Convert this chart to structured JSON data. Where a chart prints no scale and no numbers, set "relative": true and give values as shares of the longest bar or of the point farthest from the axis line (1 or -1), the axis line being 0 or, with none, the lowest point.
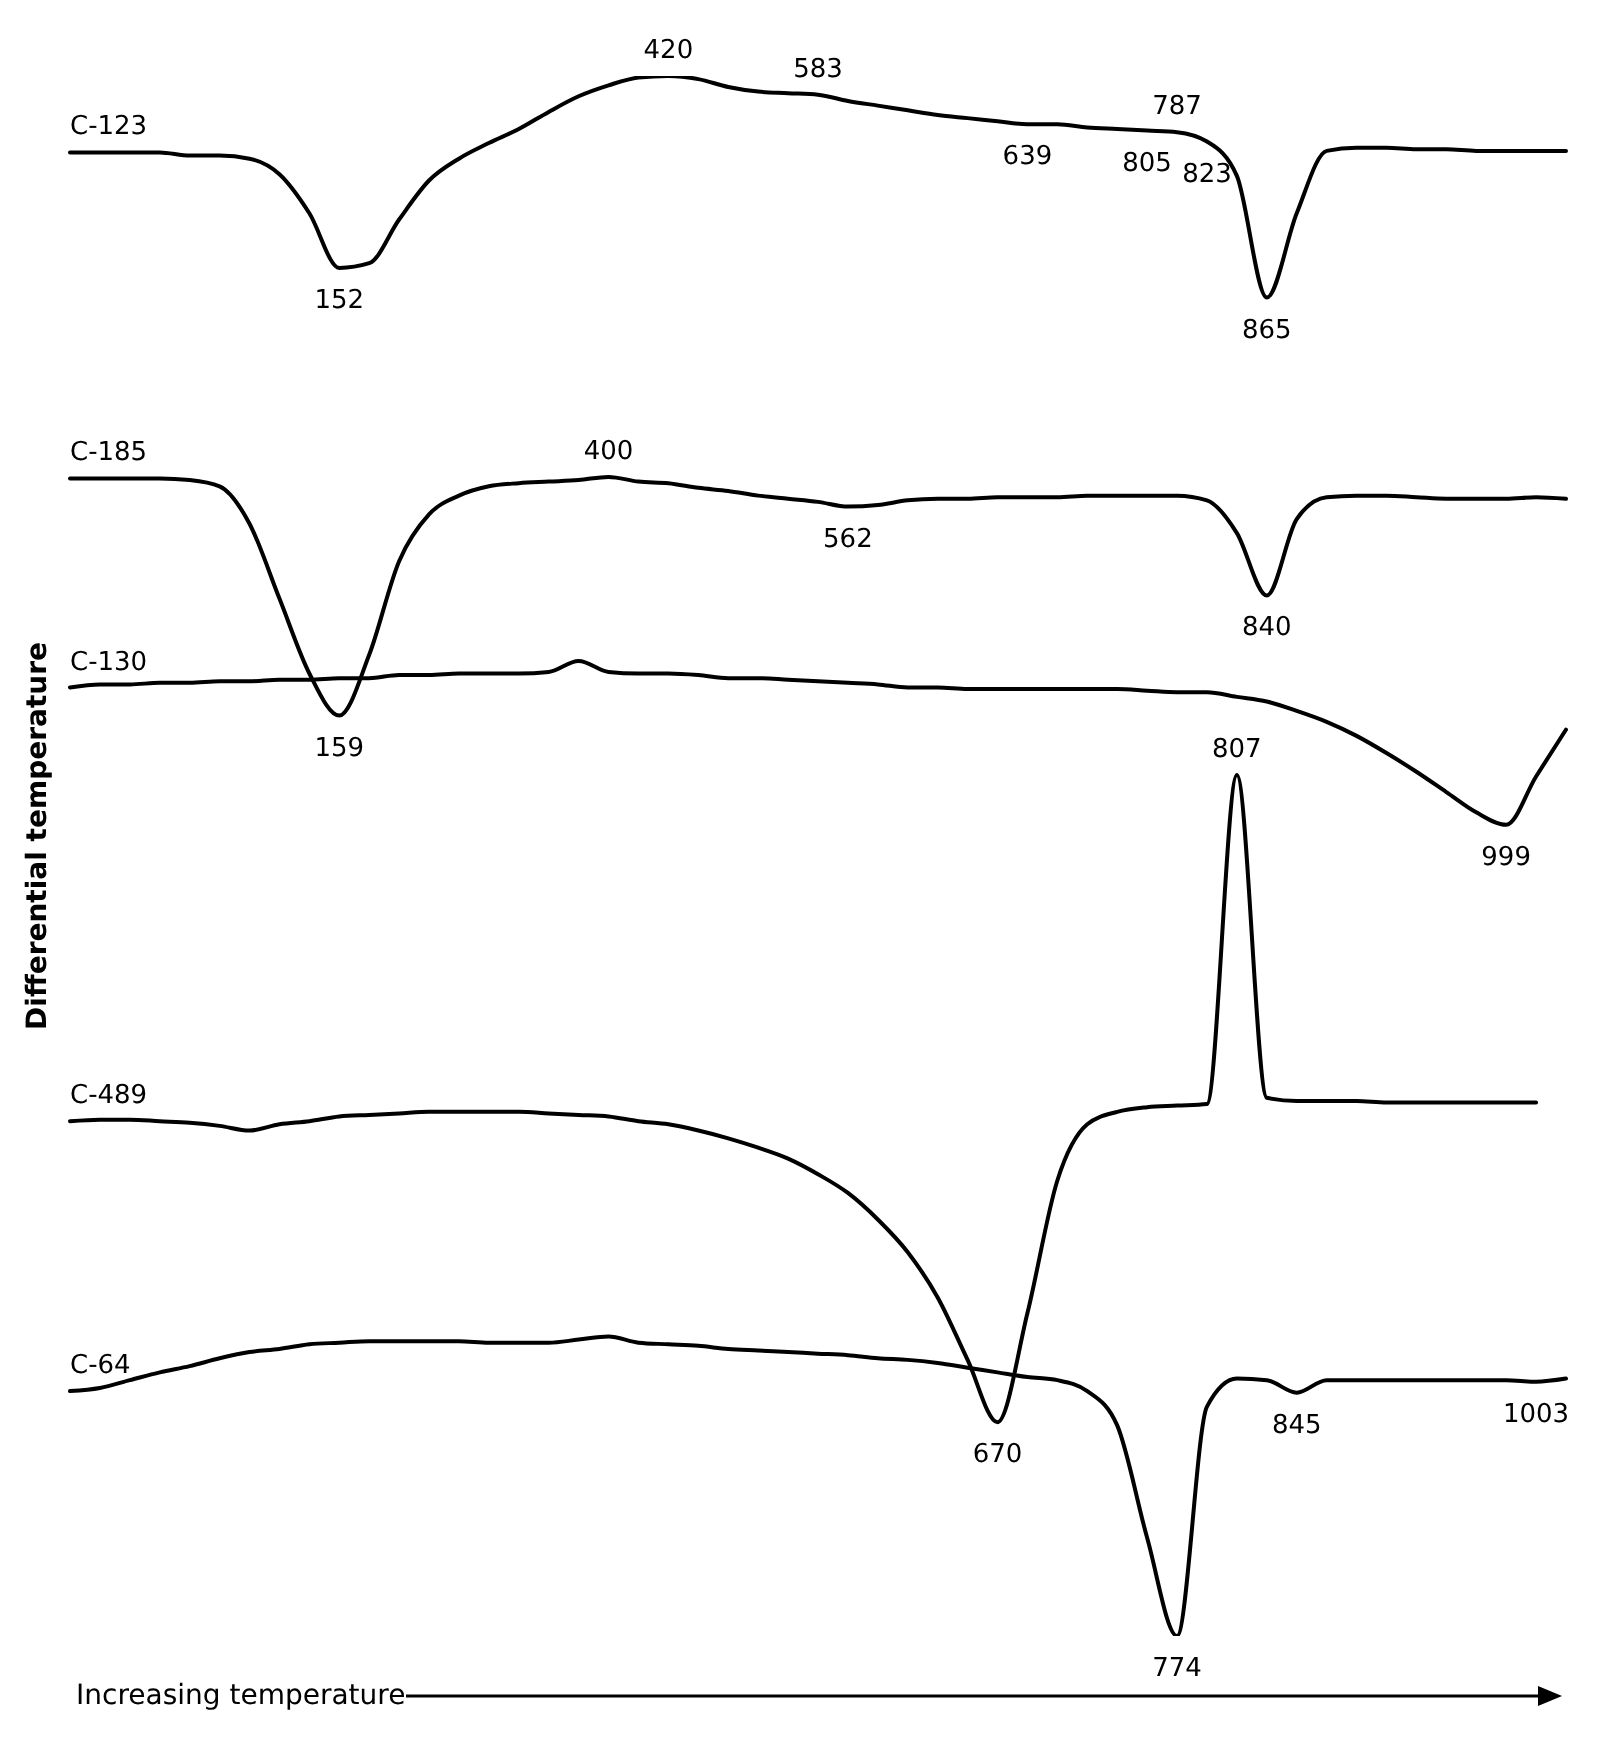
{
  "chart_data": {
    "type": "line",
    "relative": true,
    "xlabel": "Increasing temperature",
    "ylabel": "Differential temperature",
    "tick_labels": false,
    "marker": "none",
    "line_style": "solid",
    "categories": [
      null,
      null,
      null,
      null,
      null,
      null,
      null,
      null,
      null,
      null,
      null,
      null,
      null,
      null,
      null,
      null,
      null,
      null,
      null,
      null,
      null,
      null,
      null,
      null,
      null,
      null,
      null,
      null,
      null,
      null,
      null,
      null,
      null,
      null,
      null,
      null,
      null,
      null,
      null,
      null,
      null,
      null,
      null,
      null,
      null,
      null,
      null,
      null,
      null,
      null,
      null
    ],
    "series": [
      {
        "name": "C-123",
        "color": "#000000",
        "values": [
          0.951,
          0.951,
          0.951,
          0.951,
          0.949,
          0.949,
          0.947,
          0.937,
          0.912,
          0.877,
          0.88,
          0.908,
          0.933,
          0.947,
          0.957,
          0.966,
          0.977,
          0.987,
          0.994,
          0.999,
          1,
          0.998,
          0.993,
          0.99,
          0.989,
          0.988,
          0.984,
          0.981,
          0.978,
          0.975,
          0.973,
          0.971,
          0.969,
          0.969,
          0.967,
          0.966,
          0.965,
          0.964,
          0.958,
          0.936,
          0.858,
          0.912,
          0.952,
          0.954,
          0.954,
          0.953,
          0.953,
          0.952,
          0.952,
          0.952,
          0.952
        ]
      },
      {
        "name": "C-185",
        "color": "#000000",
        "values": [
          0.742,
          0.742,
          0.742,
          0.742,
          0.741,
          0.737,
          0.713,
          0.665,
          0.617,
          0.59,
          0.629,
          0.689,
          0.719,
          0.731,
          0.737,
          0.739,
          0.74,
          0.741,
          0.743,
          0.74,
          0.739,
          0.736,
          0.734,
          0.731,
          0.729,
          0.727,
          0.724,
          0.725,
          0.728,
          0.729,
          0.729,
          0.73,
          0.73,
          0.73,
          0.731,
          0.731,
          0.731,
          0.731,
          0.728,
          0.707,
          0.667,
          0.716,
          0.73,
          0.731,
          0.731,
          0.73,
          0.729,
          0.729,
          0.729,
          0.73,
          0.729
        ]
      },
      {
        "name": "C-130",
        "color": "#000000",
        "values": [
          0.608,
          0.61,
          0.61,
          0.611,
          0.611,
          0.612,
          0.612,
          0.613,
          0.613,
          0.614,
          0.614,
          0.616,
          0.616,
          0.617,
          0.617,
          0.617,
          0.618,
          0.625,
          0.618,
          0.617,
          0.617,
          0.616,
          0.614,
          0.614,
          0.613,
          0.612,
          0.611,
          0.61,
          0.608,
          0.608,
          0.607,
          0.607,
          0.607,
          0.607,
          0.607,
          0.607,
          0.606,
          0.605,
          0.605,
          0.602,
          0.599,
          0.593,
          0.586,
          0.577,
          0.566,
          0.554,
          0.541,
          0.528,
          0.52,
          0.551,
          0.581
        ]
      },
      {
        "name": "C-489",
        "color": "#000000",
        "values": [
          0.33,
          0.331,
          0.331,
          0.33,
          0.329,
          0.327,
          0.324,
          0.328,
          0.33,
          0.333,
          0.334,
          0.335,
          0.336,
          0.336,
          0.336,
          0.336,
          0.335,
          0.334,
          0.333,
          0.33,
          0.328,
          0.324,
          0.319,
          0.313,
          0.306,
          0.296,
          0.284,
          0.267,
          0.246,
          0.217,
          0.177,
          0.137,
          0.207,
          0.292,
          0.328,
          0.336,
          0.339,
          0.34,
          0.341,
          0.552,
          0.345,
          0.343,
          0.343,
          0.343,
          0.342,
          0.342,
          0.342,
          0.342,
          0.342,
          0.342,
          null
        ]
      },
      {
        "name": "C-64",
        "color": "#000000",
        "values": [
          0.157,
          0.159,
          0.164,
          0.169,
          0.173,
          0.178,
          0.182,
          0.184,
          0.187,
          0.188,
          0.189,
          0.189,
          0.189,
          0.189,
          0.188,
          0.188,
          0.188,
          0.19,
          0.192,
          0.188,
          0.187,
          0.186,
          0.184,
          0.183,
          0.182,
          0.181,
          0.18,
          0.178,
          0.177,
          0.175,
          0.172,
          0.169,
          0.166,
          0.164,
          0.157,
          0.135,
          0.063,
          0,
          0.147,
          0.165,
          0.164,
          0.156,
          0.164,
          0.164,
          0.164,
          0.164,
          0.164,
          0.164,
          0.164,
          0.163,
          0.165
        ]
      }
    ],
    "annotations": [
      {
        "text": "152",
        "y": 0.877
      },
      {
        "text": "420",
        "y": 1
      },
      {
        "text": "583",
        "y": 0.988
      },
      {
        "text": "639",
        "y": 0.969
      },
      {
        "text": "787",
        "y": 0.964
      },
      {
        "text": "805",
        "y": 0.965
      },
      {
        "text": "823",
        "y": 0.958
      },
      {
        "text": "865",
        "y": 0.858
      },
      {
        "text": "159",
        "y": 0.59
      },
      {
        "text": "400",
        "y": 0.743
      },
      {
        "text": "562",
        "y": 0.724
      },
      {
        "text": "840",
        "y": 0.667
      },
      {
        "text": "999",
        "y": 0.52
      },
      {
        "text": "807",
        "y": 0.552
      },
      {
        "text": "670",
        "y": 0.137
      },
      {
        "text": "774",
        "y": 0
      },
      {
        "text": "845",
        "y": 0.156
      },
      {
        "text": "1003",
        "y": 0.163
      }
    ]
  }
}
